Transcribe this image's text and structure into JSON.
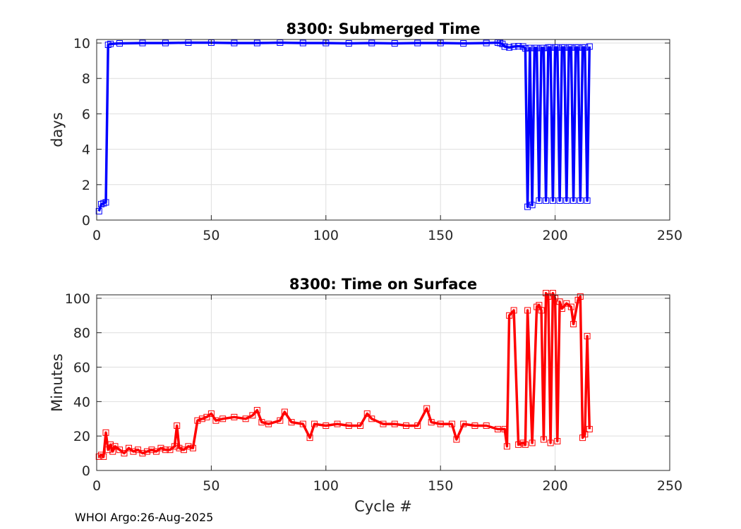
{
  "footer_text": "WHOI Argo:26-Aug-2025",
  "chart_data": [
    {
      "type": "line",
      "title": "8300: Submerged Time",
      "xlabel": "",
      "ylabel": "days",
      "xlim": [
        0,
        250
      ],
      "ylim": [
        0,
        10.2
      ],
      "xticks": [
        0,
        50,
        100,
        150,
        200,
        250
      ],
      "yticks": [
        0,
        2,
        4,
        6,
        8,
        10
      ],
      "grid": true,
      "color": "#0000ff",
      "marker": "square",
      "series": [
        {
          "name": "Submerged Time",
          "x": [
            1,
            2,
            3,
            4,
            5,
            6,
            10,
            20,
            30,
            40,
            50,
            60,
            70,
            80,
            90,
            100,
            110,
            120,
            130,
            140,
            150,
            160,
            170,
            175,
            176,
            177,
            178,
            180,
            182,
            184,
            186,
            187,
            188,
            189,
            190,
            191,
            192,
            193,
            194,
            195,
            196,
            197,
            198,
            199,
            200,
            201,
            202,
            203,
            204,
            205,
            206,
            207,
            208,
            209,
            210,
            211,
            212,
            213,
            214,
            215
          ],
          "y": [
            0.5,
            0.9,
            0.95,
            1.0,
            9.9,
            9.95,
            9.98,
            10.0,
            10.0,
            10.02,
            10.02,
            10.0,
            10.0,
            10.02,
            10.0,
            10.0,
            9.98,
            10.0,
            9.98,
            10.0,
            10.0,
            9.98,
            10.0,
            10.02,
            10.0,
            9.95,
            9.8,
            9.75,
            9.8,
            9.82,
            9.8,
            9.7,
            0.75,
            9.72,
            0.85,
            9.72,
            9.72,
            1.1,
            9.72,
            9.72,
            1.1,
            9.75,
            9.75,
            1.1,
            9.75,
            9.75,
            1.1,
            9.75,
            9.75,
            1.1,
            9.75,
            9.75,
            1.1,
            9.75,
            9.75,
            1.1,
            9.75,
            9.75,
            1.1,
            9.8
          ]
        }
      ]
    },
    {
      "type": "line",
      "title": "8300: Time on Surface",
      "xlabel": "Cycle #",
      "ylabel": "Minutes",
      "xlim": [
        0,
        250
      ],
      "ylim": [
        0,
        102
      ],
      "xticks": [
        0,
        50,
        100,
        150,
        200,
        250
      ],
      "yticks": [
        0,
        20,
        40,
        60,
        80,
        100
      ],
      "grid": true,
      "color": "#ff0000",
      "marker": "square",
      "series": [
        {
          "name": "Time on Surface",
          "x": [
            1,
            2,
            3,
            4,
            5,
            6,
            7,
            8,
            10,
            12,
            14,
            16,
            18,
            20,
            22,
            24,
            26,
            28,
            30,
            32,
            34,
            35,
            36,
            38,
            40,
            42,
            44,
            46,
            48,
            50,
            52,
            55,
            60,
            65,
            68,
            70,
            72,
            75,
            80,
            82,
            85,
            90,
            93,
            95,
            100,
            105,
            110,
            115,
            118,
            120,
            125,
            130,
            135,
            140,
            144,
            146,
            150,
            155,
            157,
            160,
            165,
            170,
            175,
            178,
            179,
            180,
            182,
            184,
            186,
            187,
            188,
            190,
            192,
            193,
            194,
            195,
            196,
            197,
            198,
            199,
            200,
            201,
            202,
            203,
            205,
            207,
            208,
            210,
            211,
            212,
            213,
            214,
            215
          ],
          "y": [
            8,
            9,
            8,
            22,
            12,
            15,
            11,
            14,
            12,
            10,
            13,
            11,
            12,
            10,
            11,
            12,
            11,
            13,
            12,
            12,
            14,
            26,
            13,
            12,
            14,
            13,
            29,
            30,
            31,
            33,
            29,
            30,
            31,
            30,
            32,
            35,
            28,
            27,
            29,
            34,
            28,
            27,
            19,
            27,
            26,
            27,
            26,
            26,
            33,
            30,
            27,
            27,
            26,
            26,
            36,
            28,
            27,
            27,
            18,
            27,
            26,
            26,
            24,
            24,
            14,
            90,
            93,
            15,
            16,
            15,
            93,
            16,
            95,
            96,
            93,
            18,
            103,
            101,
            16,
            103,
            100,
            17,
            98,
            94,
            97,
            95,
            85,
            99,
            101,
            19,
            21,
            78,
            24
          ]
        }
      ]
    }
  ]
}
